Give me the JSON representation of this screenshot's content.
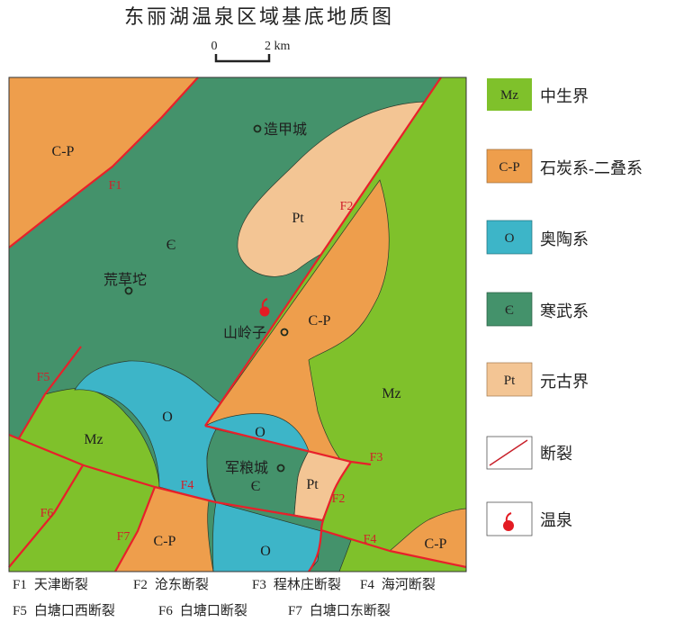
{
  "title": "东丽湖温泉区域基底地质图",
  "scale": {
    "start": "0",
    "end": "2 km"
  },
  "colors": {
    "Mz": "#7fc12b",
    "C-P": "#ee9e4c",
    "O": "#3db5c8",
    "Cambrian": "#44926b",
    "Pt": "#f3c594",
    "fault": "#e8202a",
    "hot_spring": "#e31b23"
  },
  "map": {
    "units": {
      "cp_nw": "C-P",
      "cam_main": "Є",
      "pt_n": "Pt",
      "cp_mid": "C-P",
      "mz_e": "Mz",
      "mz_w": "Mz",
      "o_arc": "O",
      "o_small": "O",
      "cam_center": "Є",
      "pt_s": "Pt",
      "cp_sw": "C-P",
      "o_s": "O",
      "cp_se": "C-P"
    },
    "faults": {
      "f1": "F1",
      "f2a": "F2",
      "f2b": "F2",
      "f3": "F3",
      "f4a": "F4",
      "f4b": "F4",
      "f5": "F5",
      "f6": "F6",
      "f7": "F7"
    },
    "towns": {
      "zaojiacheng": "造甲城",
      "huangcaotuo": "荒草坨",
      "shanlingzi": "山岭子",
      "junliangcheng": "军粮城"
    },
    "hot_spring_icon": "hot-spring-icon"
  },
  "legend": [
    {
      "code": "Mz",
      "label": "中生界"
    },
    {
      "code": "C-P",
      "label": "石炭系-二叠系"
    },
    {
      "code": "O",
      "label": "奥陶系"
    },
    {
      "code": "Є",
      "label": "寒武系"
    },
    {
      "code": "Pt",
      "label": "元古界"
    },
    {
      "code": "",
      "label": "断裂",
      "icon": "fault-line-icon"
    },
    {
      "code": "",
      "label": "温泉",
      "icon": "hot-spring-icon"
    }
  ],
  "fault_key": [
    {
      "code": "F1",
      "name": "天津断裂"
    },
    {
      "code": "F2",
      "name": "沧东断裂"
    },
    {
      "code": "F3",
      "name": "程林庄断裂"
    },
    {
      "code": "F4",
      "name": "海河断裂"
    },
    {
      "code": "F5",
      "name": "白塘口西断裂"
    },
    {
      "code": "F6",
      "name": "白塘口断裂"
    },
    {
      "code": "F7",
      "name": "白塘口东断裂"
    }
  ]
}
